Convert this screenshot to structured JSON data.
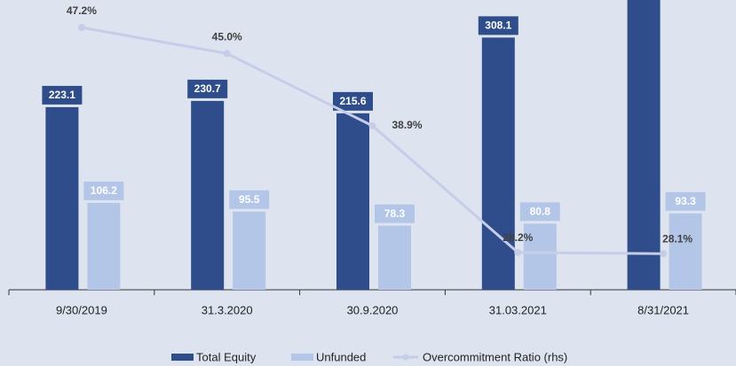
{
  "chart_data": {
    "type": "bar",
    "categories": [
      "9/30/2019",
      "31.3.2020",
      "30.9.2020",
      "31.03.2021",
      "8/31/2021"
    ],
    "series": [
      {
        "name": "Total Equity",
        "color": "#2e4d8a",
        "values": [
          223.1,
          230.7,
          215.6,
          308.1,
          360
        ]
      },
      {
        "name": "Unfunded",
        "color": "#b4c6e7",
        "values": [
          106.2,
          95.5,
          78.3,
          80.8,
          93.3
        ]
      },
      {
        "name": "Overcommitment Ratio (rhs)",
        "color": "#c5cde8",
        "axis": "y2",
        "type": "line",
        "values": [
          47.2,
          45.0,
          38.9,
          28.2,
          28.1
        ],
        "value_labels": [
          "47.2%",
          "45.0%",
          "38.9%",
          "28.2%",
          "28.1%"
        ]
      }
    ],
    "ylim": [
      0,
      354
    ],
    "y2lim": [
      25.05,
      49.52
    ]
  }
}
